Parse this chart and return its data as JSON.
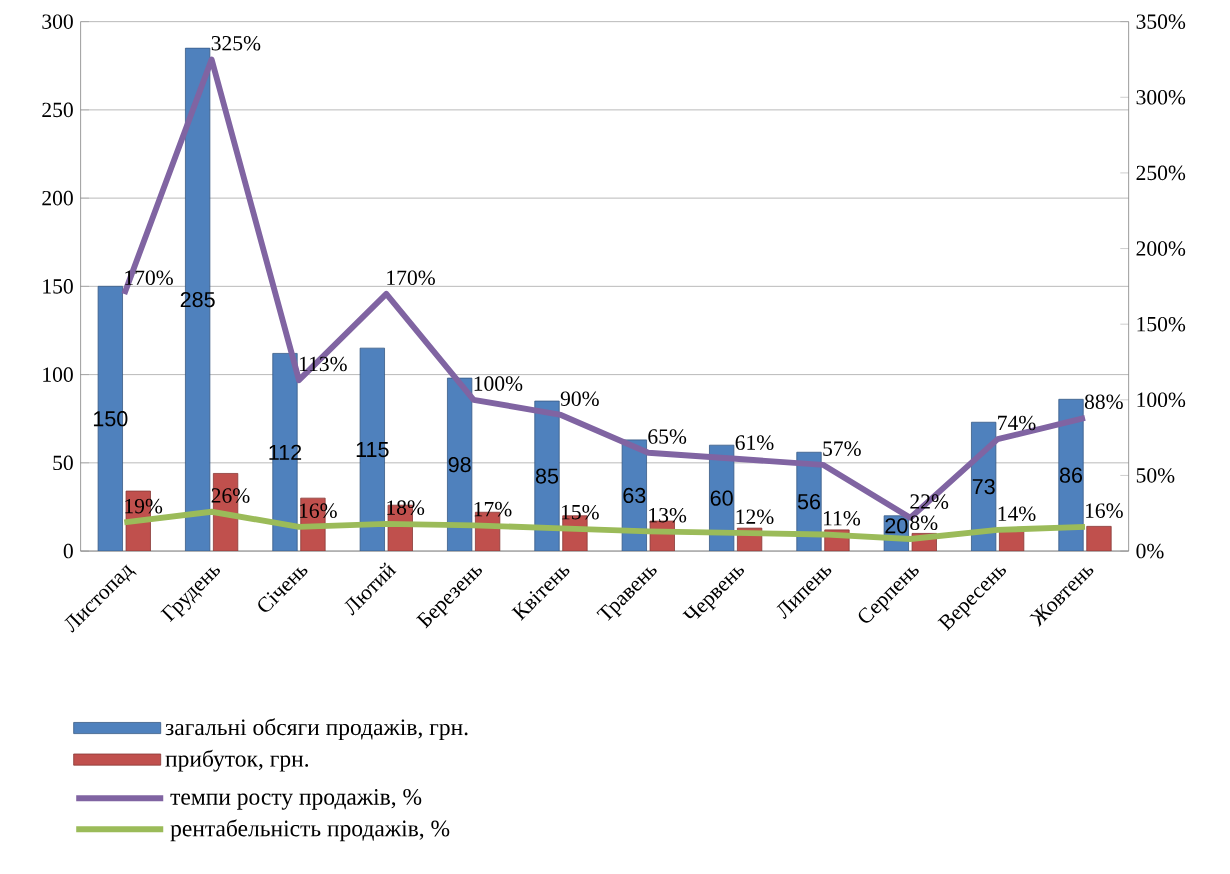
{
  "chart_data": {
    "type": "bar",
    "categories": [
      "Листопад",
      "Грудень",
      "Січень",
      "Лютий",
      "Березень",
      "Квітень",
      "Травень",
      "Червень",
      "Липень",
      "Серпень",
      "Вересень",
      "Жовтень"
    ],
    "series": [
      {
        "name": "загальні обсяги продажів, грн.",
        "color": "#4f81bd",
        "values": [
          150,
          285,
          112,
          115,
          98,
          85,
          63,
          60,
          56,
          20,
          73,
          86
        ],
        "value_labels": [
          "150",
          "285",
          "112",
          "115",
          "98",
          "85",
          "63",
          "60",
          "56",
          "20",
          "73",
          "86"
        ]
      },
      {
        "name": "прибуток, грн.",
        "color": "#c0504d",
        "values": [
          34,
          44,
          30,
          26,
          22,
          20,
          17,
          13,
          12,
          10,
          13,
          14
        ]
      },
      {
        "name": "темпи росту продажів, %",
        "type": "line",
        "axis": "y2",
        "color": "#8064a2",
        "values": [
          170,
          325,
          113,
          170,
          100,
          90,
          65,
          61,
          57,
          22,
          74,
          88
        ],
        "value_labels": [
          "170%",
          "325%",
          "113%",
          "170%",
          "100%",
          "90%",
          "65%",
          "61%",
          "57%",
          "22%",
          "74%",
          "88%"
        ]
      },
      {
        "name": "рентабельність продажів, %",
        "type": "line",
        "axis": "y2",
        "color": "#9bbb59",
        "values": [
          19,
          26,
          16,
          18,
          17,
          15,
          13,
          12,
          11,
          8,
          14,
          16
        ],
        "value_labels": [
          "19%",
          "26%",
          "16%",
          "18%",
          "17%",
          "15%",
          "13%",
          "12%",
          "11%",
          "8%",
          "14%",
          "16%"
        ]
      }
    ],
    "ylim": [
      0,
      300
    ],
    "yticks": [
      0,
      50,
      100,
      150,
      200,
      250,
      300
    ],
    "y2lim": [
      0,
      350
    ],
    "y2ticks": [
      {
        "value": 0,
        "label": "0%"
      },
      {
        "value": 50,
        "label": "50%"
      },
      {
        "value": 100,
        "label": "100%"
      },
      {
        "value": 150,
        "label": "150%"
      },
      {
        "value": 200,
        "label": "200%"
      },
      {
        "value": 250,
        "label": "250%"
      },
      {
        "value": 300,
        "label": "300%"
      },
      {
        "value": 350,
        "label": "350%"
      }
    ],
    "grid": "y",
    "legend": "bottom"
  }
}
